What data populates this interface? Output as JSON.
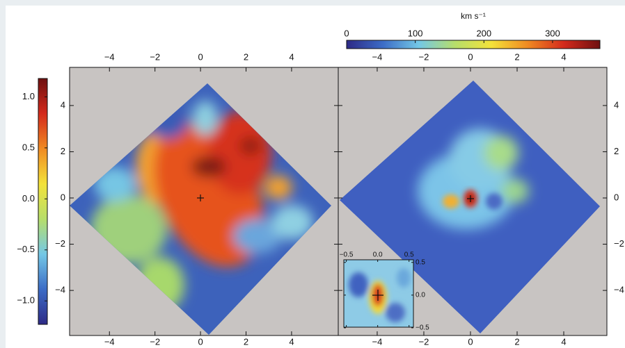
{
  "chart_data": [
    {
      "type": "colorbar",
      "orientation": "vertical",
      "ylim": [
        -1.23,
        1.18
      ],
      "yticks": [
        {
          "value": -1,
          "label": "−1.0"
        },
        {
          "value": -0.5,
          "label": "−0.5"
        },
        {
          "value": 0,
          "label": "0.0"
        },
        {
          "value": 0.5,
          "label": "0.5"
        },
        {
          "value": 1,
          "label": "1.0"
        }
      ],
      "colors": [
        "#2d2a86",
        "#3c6cc6",
        "#74c8e6",
        "#b7de6a",
        "#f3e23a",
        "#f08a22",
        "#d42a1c",
        "#6e1010"
      ]
    },
    {
      "type": "colorbar",
      "orientation": "horizontal",
      "xlabel": "km s⁻¹",
      "xlim": [
        0,
        369
      ],
      "xticks": [
        0,
        100,
        200,
        300
      ],
      "colors": [
        "#2d2a86",
        "#3c6cc6",
        "#74c8e6",
        "#b7de6a",
        "#f3e23a",
        "#f08a22",
        "#d42a1c",
        "#6e1010"
      ]
    },
    {
      "type": "map",
      "xaxis": "both",
      "yaxis": "left",
      "xlim": [
        -5.75,
        6.05
      ],
      "ylim": [
        -5.95,
        5.65
      ],
      "xticks": [
        {
          "value": -4,
          "label": "−4"
        },
        {
          "value": -2,
          "label": "−2"
        },
        0,
        2,
        4
      ],
      "yticks": [
        {
          "value": -4,
          "label": "−4"
        },
        {
          "value": -2,
          "label": "−2"
        },
        0,
        2,
        4
      ]
    },
    {
      "type": "map",
      "xaxis": "both",
      "yaxis": "right",
      "xlim": [
        -5.67,
        5.85
      ],
      "ylim": [
        -5.95,
        5.65
      ],
      "xticks": [
        {
          "value": -4,
          "label": "−4"
        },
        {
          "value": -2,
          "label": "−2"
        },
        0,
        2,
        4
      ],
      "yticks": [
        {
          "value": -4,
          "label": "−4"
        },
        {
          "value": -2,
          "label": "−2"
        },
        0,
        2,
        4
      ]
    },
    {
      "type": "map",
      "xaxis": "top",
      "yaxis": "right",
      "xlim": [
        -0.54,
        0.57
      ],
      "ylim": [
        -0.49,
        0.54
      ],
      "xticks": [
        {
          "value": -0.5,
          "label": "−0.5"
        },
        {
          "value": 0,
          "label": "0.0"
        },
        0.5
      ],
      "yticks": [
        {
          "value": -0.5,
          "label": "−0.5"
        },
        {
          "value": 0,
          "label": "0.0"
        },
        0.5
      ]
    }
  ]
}
